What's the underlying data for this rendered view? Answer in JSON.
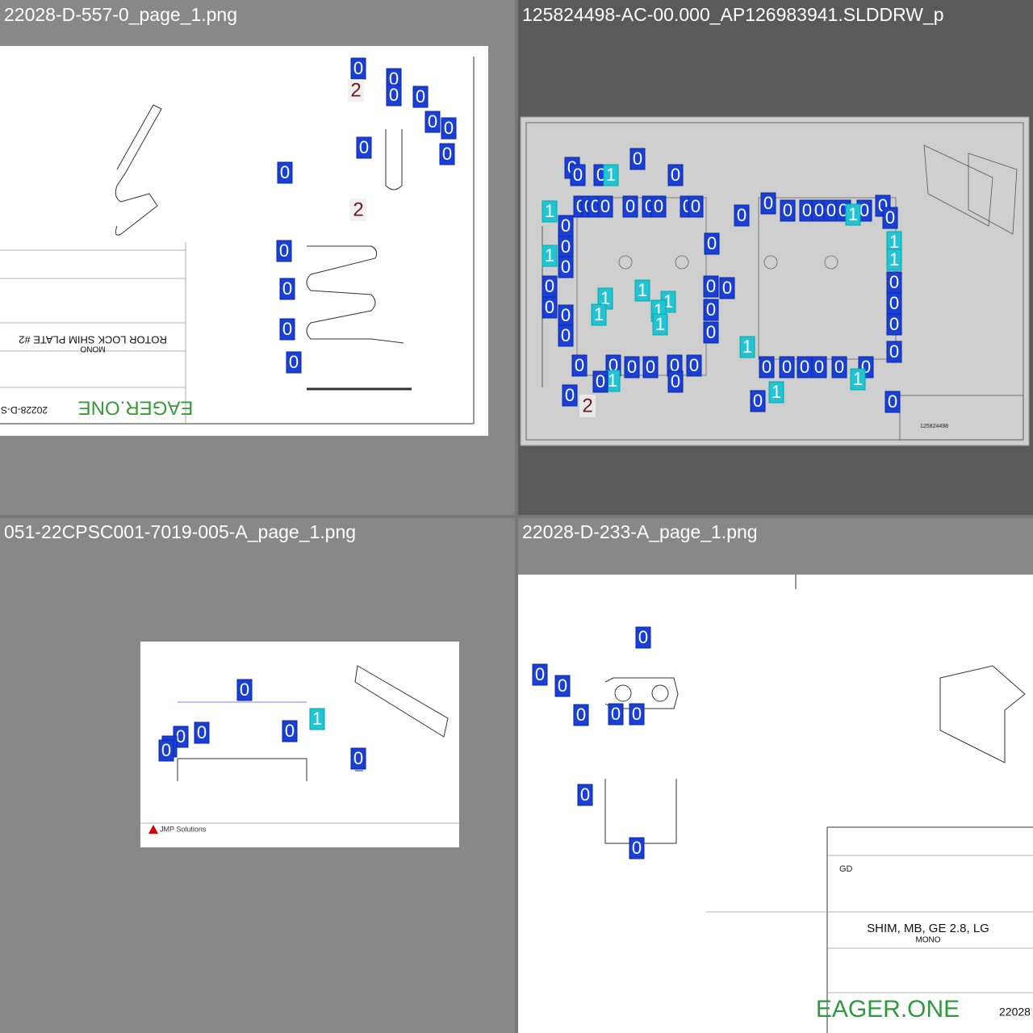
{
  "panels": [
    {
      "title": "22028-D-557-0_page_1.png",
      "labels": [
        "0",
        "0",
        "0",
        "0",
        "0",
        "0",
        "0",
        "0",
        "0",
        "0",
        "0",
        "0",
        "0",
        "2",
        "2"
      ],
      "texts": [
        "ROTOR LOCK SHIM PLATE #2",
        "MONO",
        "EAGER.ONE",
        "20228-D-S"
      ]
    },
    {
      "title": "125824498-AC-00.000_AP126983941.SLDDRW_p",
      "labels": [
        "0",
        "0",
        "0",
        "0",
        "0",
        "1",
        "1",
        "0",
        "0",
        "0",
        "0",
        "0",
        "0",
        "0",
        "0",
        "0",
        "0",
        "0",
        "0",
        "0",
        "0",
        "0",
        "0",
        "0",
        "1",
        "0",
        "0",
        "0",
        "0",
        "0",
        "1",
        "0",
        "0",
        "0",
        "0",
        "0",
        "0",
        "0",
        "0",
        "0",
        "1",
        "1",
        "0",
        "0",
        "0",
        "0",
        "1",
        "1",
        "1",
        "1",
        "1",
        "1",
        "1",
        "0",
        "0",
        "0",
        "0",
        "0",
        "0",
        "0",
        "0",
        "0",
        "0",
        "0",
        "0",
        "1",
        "1",
        "0",
        "0",
        "0",
        "1",
        "0",
        "0",
        "2"
      ],
      "texts": [
        "125824498"
      ]
    },
    {
      "title": "051-22CPSC001-7019-005-A_page_1.png",
      "labels": [
        "0",
        "0",
        "0",
        "0",
        "0",
        "0",
        "0",
        "1"
      ],
      "texts": [
        "JMP Solutions"
      ]
    },
    {
      "title": "22028-D-233-A_page_1.png",
      "labels": [
        "0",
        "0",
        "0",
        "0",
        "0",
        "0",
        "0",
        "0"
      ],
      "texts": [
        "SHIM, MB, GE 2.8, LG",
        "MONO",
        "EAGER.ONE",
        "22028",
        "GD"
      ]
    }
  ]
}
